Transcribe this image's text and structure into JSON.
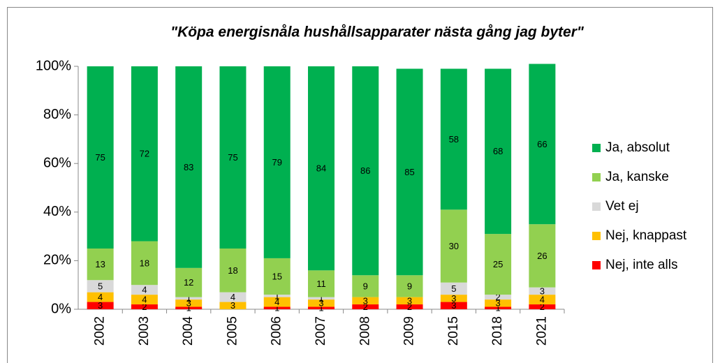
{
  "chart_data": {
    "type": "stacked_bar_100",
    "title": "\"Köpa energisnåla hushållsapparater nästa gång jag byter\"",
    "categories": [
      "2002",
      "2003",
      "2004",
      "2005",
      "2006",
      "2007",
      "2008",
      "2009",
      "2015",
      "2018",
      "2021"
    ],
    "series": [
      {
        "name": "Nej, inte alls",
        "color": "#ff0000",
        "values": [
          3,
          2,
          1,
          0,
          1,
          1,
          2,
          2,
          3,
          1,
          2
        ]
      },
      {
        "name": "Nej, knappast",
        "color": "#ffc000",
        "values": [
          4,
          4,
          3,
          3,
          4,
          3,
          3,
          3,
          3,
          3,
          4
        ]
      },
      {
        "name": "Vet ej",
        "color": "#d9d9d9",
        "values": [
          5,
          4,
          1,
          4,
          1,
          1,
          0,
          0,
          5,
          2,
          3
        ]
      },
      {
        "name": "Ja, kanske",
        "color": "#92d050",
        "values": [
          13,
          18,
          12,
          18,
          15,
          11,
          9,
          9,
          30,
          25,
          26
        ]
      },
      {
        "name": "Ja, absolut",
        "color": "#00b050",
        "values": [
          75,
          72,
          83,
          75,
          79,
          84,
          86,
          85,
          58,
          68,
          66
        ]
      }
    ],
    "ylim": [
      0,
      100
    ],
    "yticks": [
      {
        "value": 0,
        "label": "0%"
      },
      {
        "value": 20,
        "label": "20%"
      },
      {
        "value": 40,
        "label": "40%"
      },
      {
        "value": 60,
        "label": "60%"
      },
      {
        "value": 80,
        "label": "80%"
      },
      {
        "value": 100,
        "label": "100%"
      }
    ],
    "grid": false,
    "legend": "right"
  }
}
